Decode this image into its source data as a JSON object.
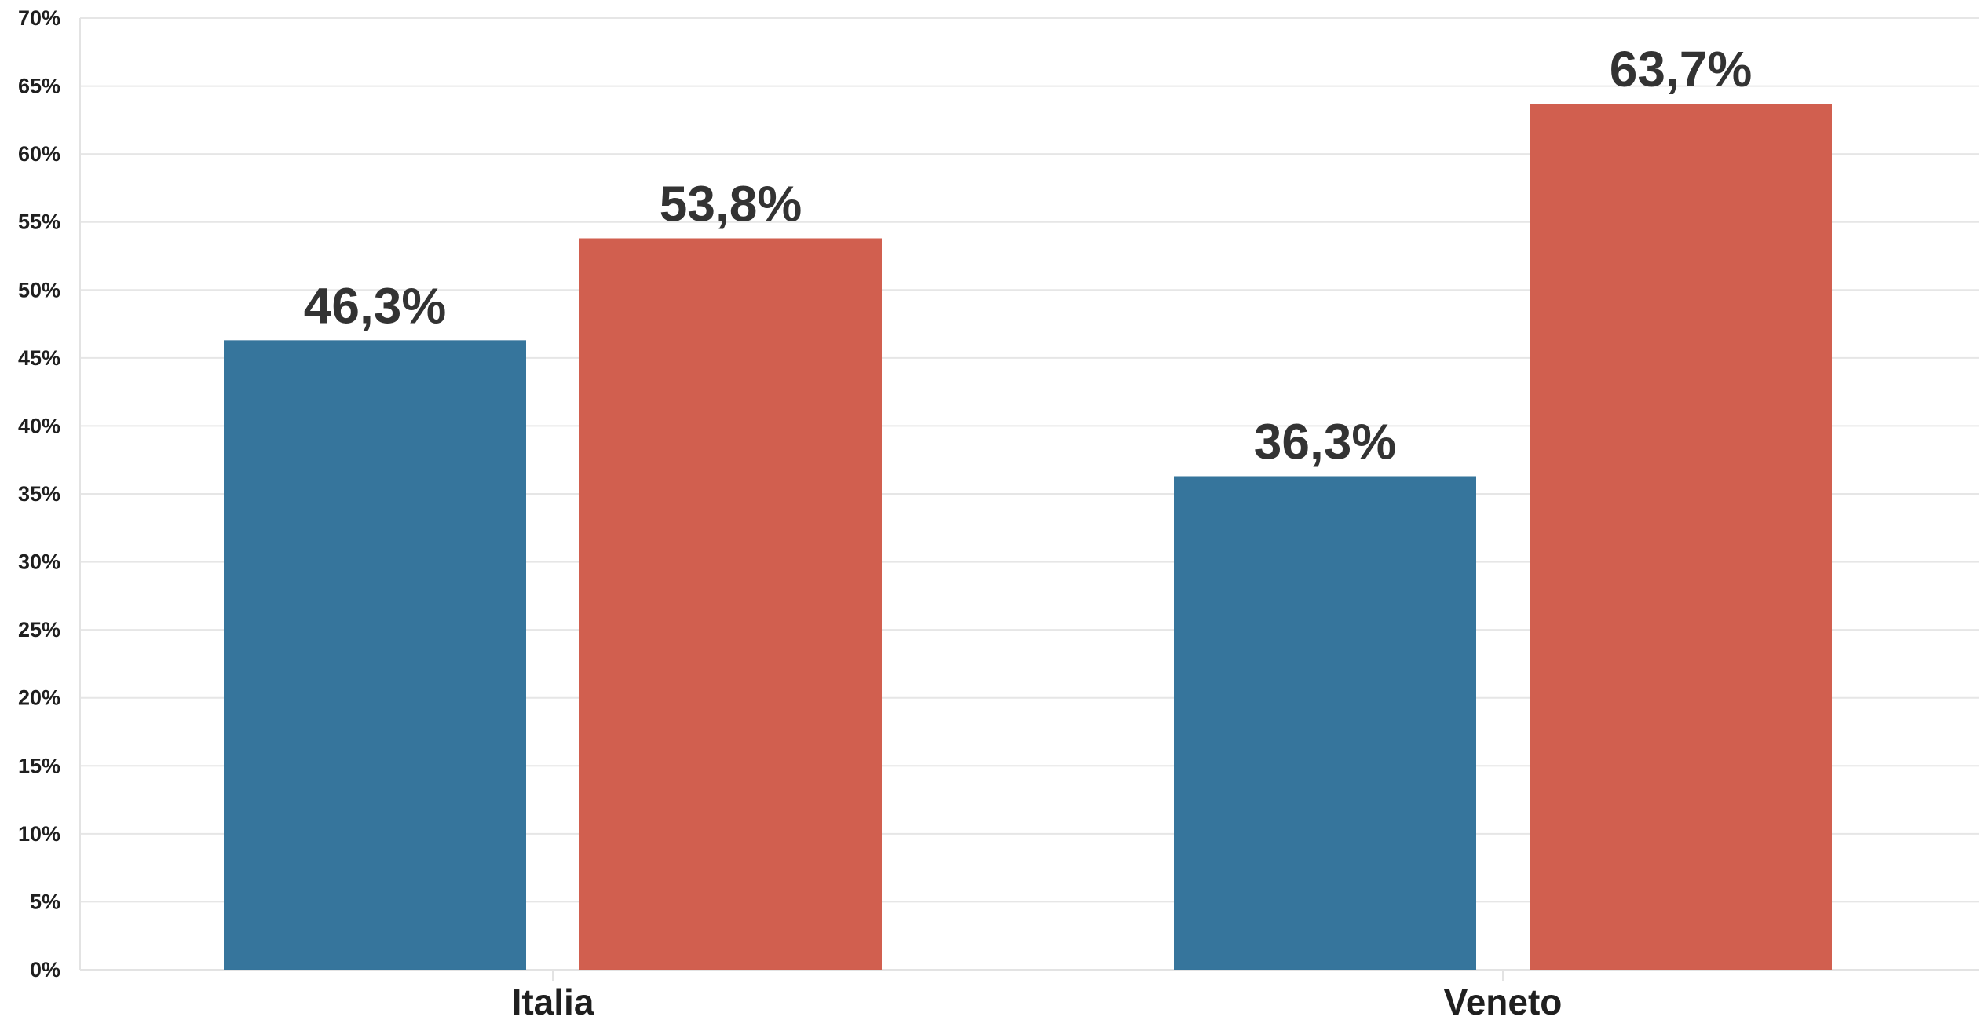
{
  "chart_data": {
    "type": "bar",
    "categories": [
      "Italia",
      "Veneto"
    ],
    "series": [
      {
        "values": [
          46.3,
          36.3
        ],
        "labels": [
          "46,3%",
          "36,3%"
        ],
        "color": "#2f7199"
      },
      {
        "values": [
          53.8,
          63.7
        ],
        "labels": [
          "53,8%",
          "63,7%"
        ],
        "color": "#cf5a49"
      }
    ],
    "ylim": [
      0,
      70
    ],
    "yticks": [
      0,
      5,
      10,
      15,
      20,
      25,
      30,
      35,
      40,
      45,
      50,
      55,
      60,
      65,
      70
    ],
    "ytick_labels": [
      "0%",
      "5%",
      "10%",
      "15%",
      "20%",
      "25%",
      "30%",
      "35%",
      "40%",
      "45%",
      "50%",
      "55%",
      "60%",
      "65%",
      "70%"
    ],
    "grid": true,
    "legend": "none",
    "title": "",
    "xlabel": "",
    "ylabel": ""
  }
}
